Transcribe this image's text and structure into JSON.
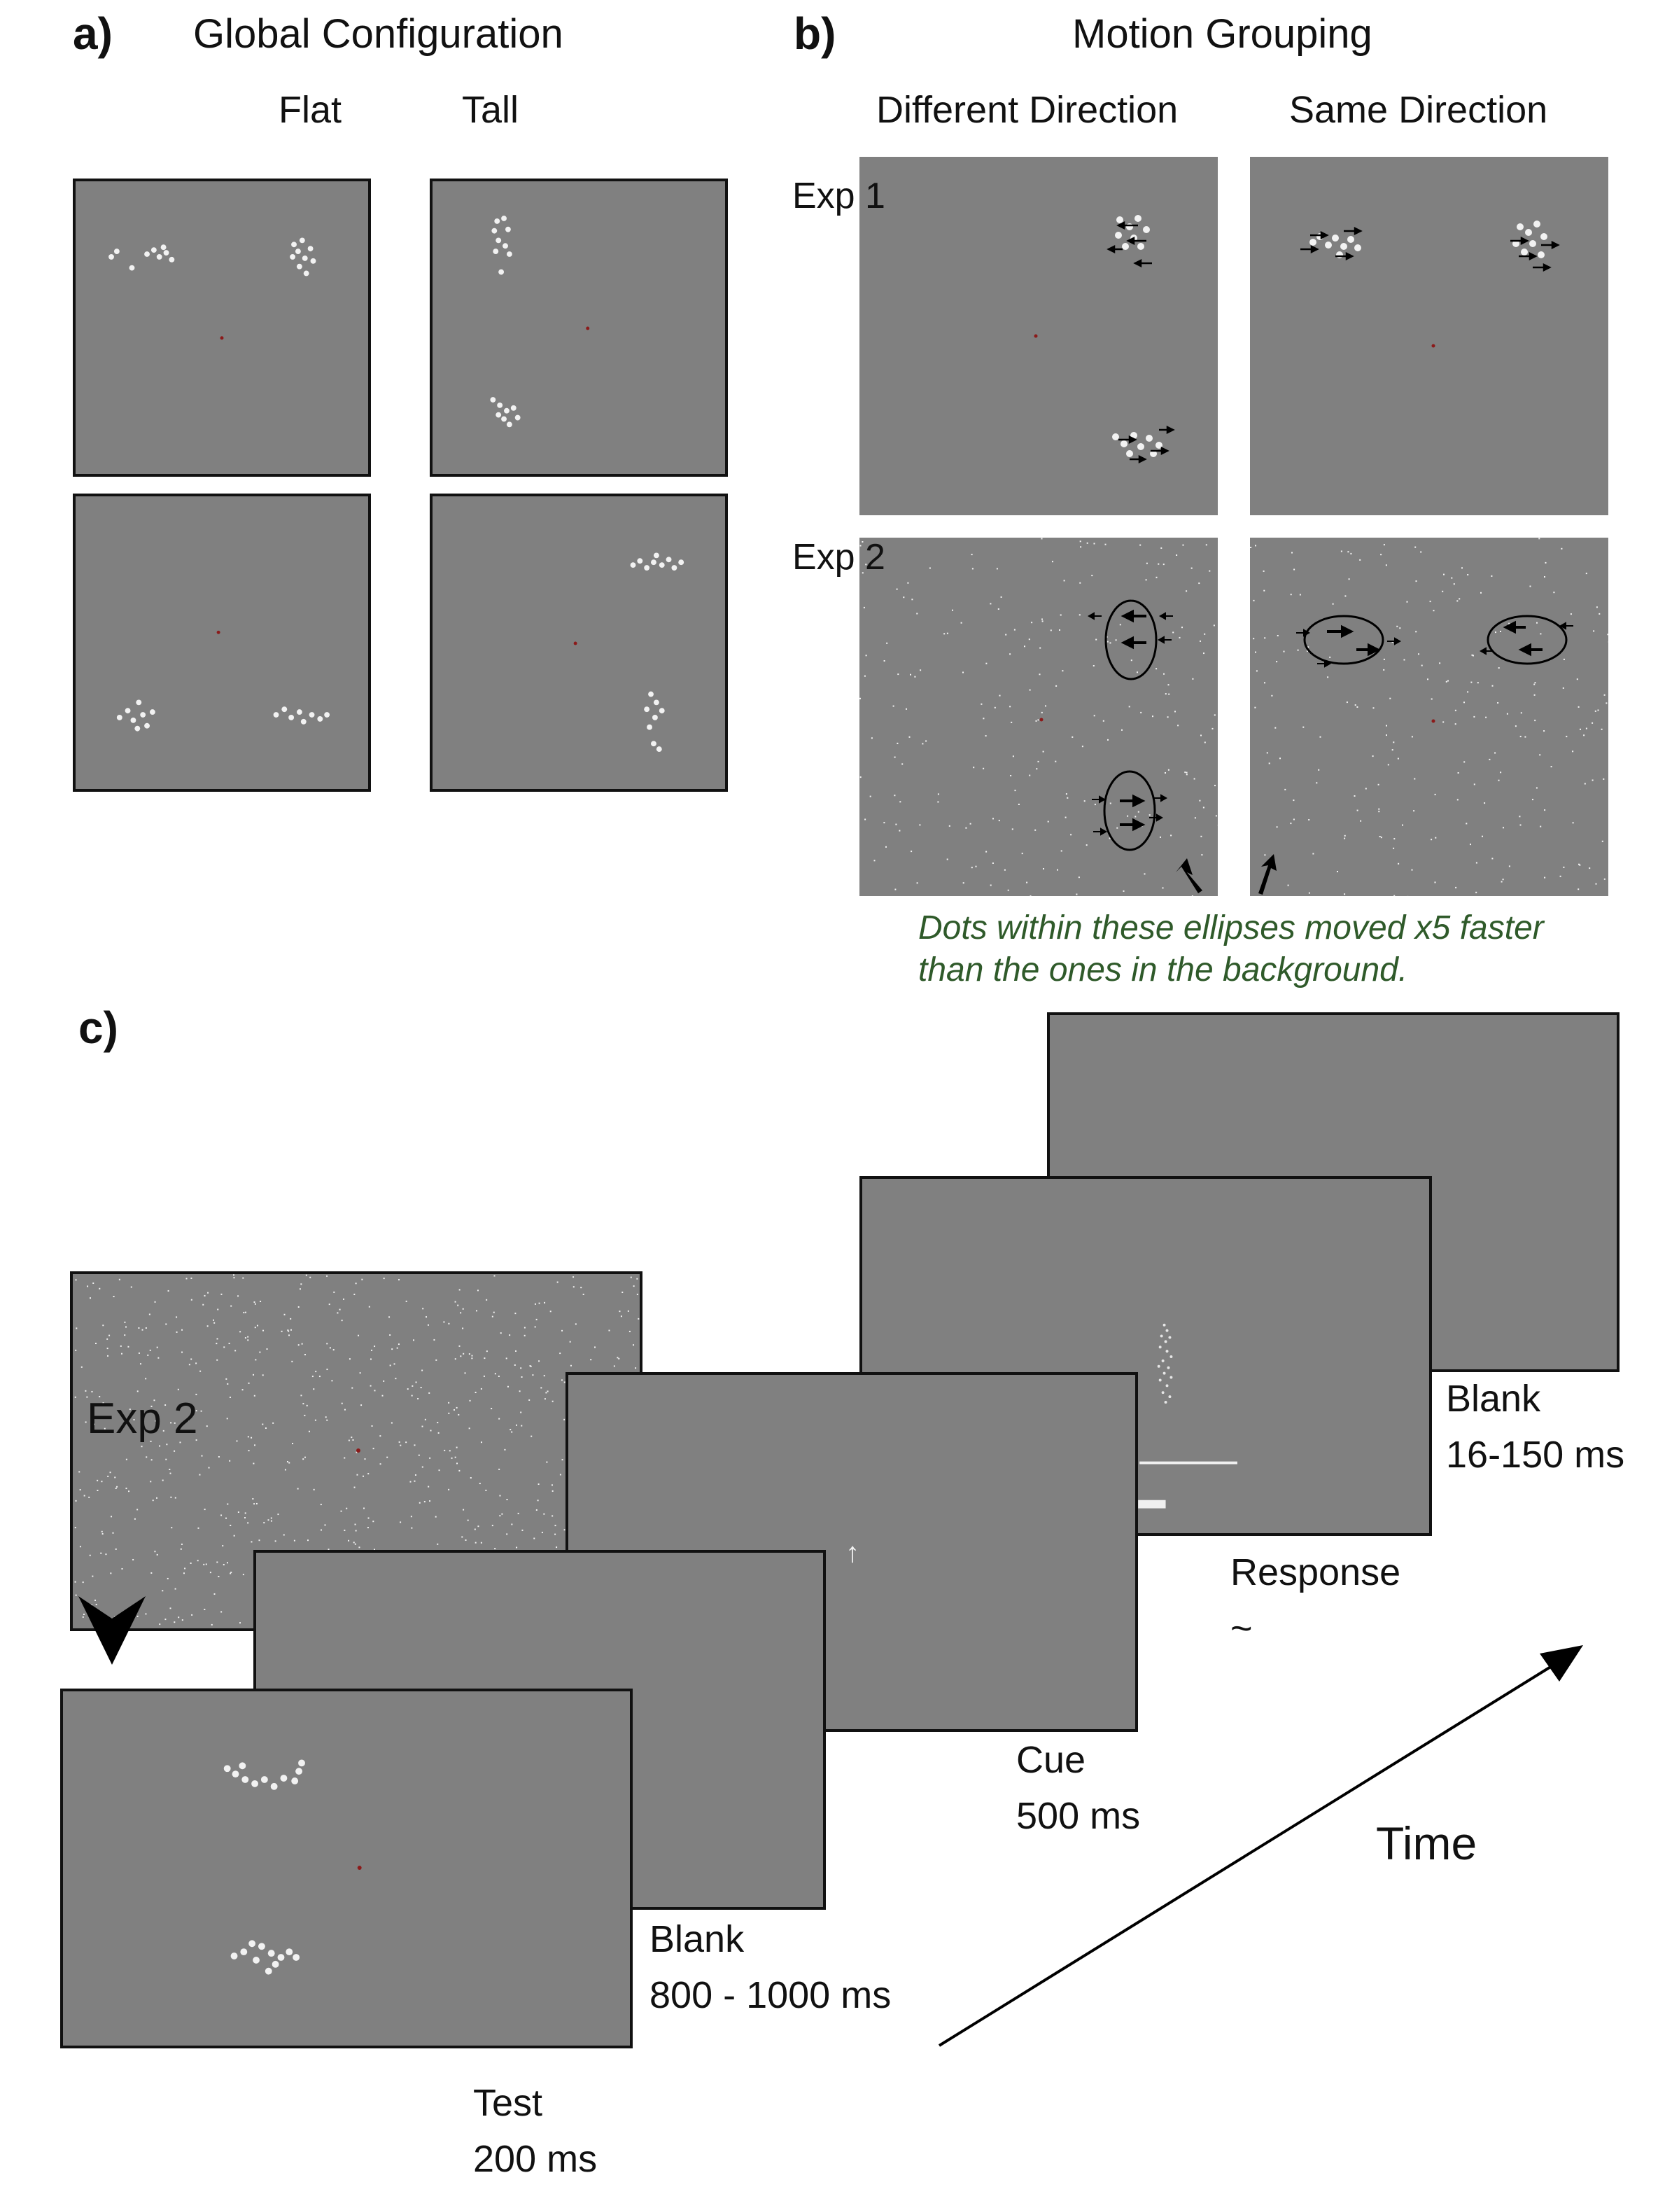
{
  "panel_a": {
    "letter": "a)",
    "title": "Global Configuration",
    "columns": [
      "Flat",
      "Tall"
    ]
  },
  "panel_b": {
    "letter": "b)",
    "title": "Motion Grouping",
    "columns": [
      "Different Direction",
      "Same Direction"
    ],
    "rows": [
      "Exp 1",
      "Exp 2"
    ],
    "note_line1": "Dots within these ellipses moved x5 faster",
    "note_line2": "than the ones in the background."
  },
  "panel_c": {
    "letter": "c)",
    "exp_label": "Exp 2",
    "stages": [
      {
        "name": "Test",
        "duration": "200 ms"
      },
      {
        "name": "Blank",
        "duration": "800 - 1000 ms"
      },
      {
        "name": "Cue",
        "duration": "500 ms"
      },
      {
        "name": "Response",
        "duration": "~"
      },
      {
        "name": "Blank",
        "duration": "16-150 ms"
      }
    ],
    "time_label": "Time",
    "cue_glyph": "↑"
  },
  "colors": {
    "screen_gray": "#808080",
    "fixation_red": "#8b1a1a",
    "note_green": "#2f5a2a",
    "dot_white": "#f2f2f2"
  }
}
